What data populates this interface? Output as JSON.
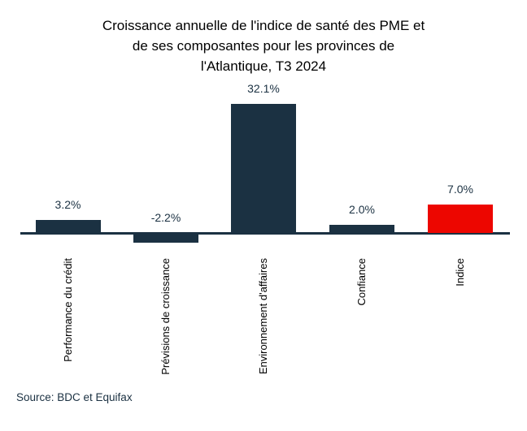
{
  "title": {
    "lines": [
      "Croissance annuelle de l'indice de santé des PME et",
      "de ses composantes pour les provinces de",
      "l'Atlantique, T3 2024"
    ]
  },
  "source": "Source: BDC et Equifax",
  "colors": {
    "navy": "#1b3142",
    "red": "#ed0600",
    "title_text": "#000000",
    "tick_text": "#000000"
  },
  "chart_data": {
    "type": "bar",
    "title": "Croissance annuelle de l'indice de santé des PME et de ses composantes pour les provinces de l'Atlantique, T3 2024",
    "categories": [
      "Performance du crédit",
      "Prévisions de croissance",
      "Environnement d'affaires",
      "Confiance",
      "Indice"
    ],
    "values": [
      3.2,
      -2.2,
      32.1,
      2.0,
      7.0
    ],
    "value_labels": [
      "3.2%",
      "-2.2%",
      "32.1%",
      "2.0%",
      "7.0%"
    ],
    "bar_colors": [
      "#1b3142",
      "#1b3142",
      "#1b3142",
      "#1b3142",
      "#ed0600"
    ],
    "xlabel": "",
    "ylabel": "",
    "ylim": [
      -5,
      35
    ],
    "baseline": 0,
    "grid": false,
    "legend": null,
    "tick_rotation": 90
  }
}
